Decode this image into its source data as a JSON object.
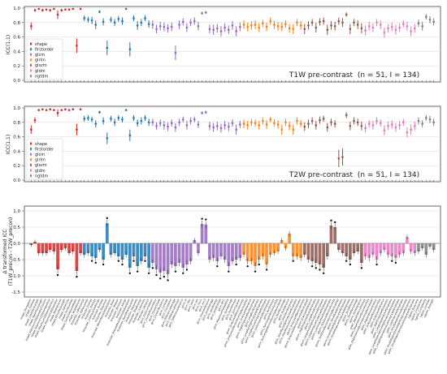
{
  "chart_data": [
    {
      "type": "scatter",
      "panel": "top",
      "title": "T1W pre-contrast",
      "title_stats": "(n = 51, I = 134)",
      "ylabel": "ICC(1,1)",
      "ylim": [
        0,
        1
      ],
      "yticks": [
        "0.0",
        "0.2",
        "0.4",
        "0.6",
        "0.8",
        "1.0"
      ],
      "grid": true,
      "legend": {
        "placement": "lower-left",
        "entries": [
          "shape",
          "firstorder",
          "glcm",
          "glrlm",
          "glszm",
          "gldm",
          "ngtdm"
        ]
      },
      "series_colors": {
        "shape": "#d62728",
        "firstorder": "#1f77b4",
        "glcm": "#9467bd",
        "glrlm": "#ff7f0e",
        "glszm": "#8c564b",
        "gldm": "#e377c2",
        "ngtdm": "#7f7f7f"
      },
      "group_counts": {
        "shape": 14,
        "firstorder": 18,
        "glcm": 24,
        "glrlm": 16,
        "glszm": 16,
        "gldm": 14,
        "ngtdm": 5
      },
      "values": [
        0.75,
        0.97,
        0.99,
        0.97,
        0.98,
        0.97,
        0.99,
        0.91,
        0.97,
        0.98,
        0.98,
        0.99,
        0.48,
        0.99,
        0.86,
        0.84,
        0.83,
        0.77,
        0.95,
        0.81,
        0.45,
        0.84,
        0.8,
        0.85,
        0.82,
        0.99,
        0.43,
        0.86,
        0.76,
        0.8,
        0.86,
        0.78,
        0.77,
        0.71,
        0.75,
        0.74,
        0.72,
        0.74,
        0.38,
        0.77,
        0.81,
        0.73,
        0.8,
        0.82,
        0.75,
        0.93,
        0.94,
        0.71,
        0.7,
        0.72,
        0.68,
        0.73,
        0.7,
        0.76,
        0.68,
        0.74,
        0.77,
        0.74,
        0.76,
        0.77,
        0.73,
        0.79,
        0.74,
        0.82,
        0.77,
        0.75,
        0.74,
        0.78,
        0.72,
        0.71,
        0.8,
        0.76,
        0.71,
        0.76,
        0.8,
        0.73,
        0.81,
        0.82,
        0.7,
        0.76,
        0.75,
        0.82,
        0.8,
        0.91,
        0.71,
        0.8,
        0.77,
        0.72,
        0.69,
        0.75,
        0.73,
        0.8,
        0.77,
        0.66,
        0.72,
        0.74,
        0.7,
        0.73,
        0.78,
        0.75,
        0.68,
        0.72,
        0.79,
        0.75,
        0.88,
        0.84,
        0.81
      ],
      "errors": [
        0.05,
        0.02,
        0.01,
        0.02,
        0.01,
        0.02,
        0.01,
        0.06,
        0.02,
        0.01,
        0.01,
        0.01,
        0.1,
        0.01,
        0.04,
        0.04,
        0.05,
        0.06,
        0.02,
        0.05,
        0.1,
        0.04,
        0.05,
        0.04,
        0.05,
        0.01,
        0.1,
        0.04,
        0.06,
        0.05,
        0.04,
        0.05,
        0.06,
        0.06,
        0.06,
        0.06,
        0.06,
        0.06,
        0.1,
        0.06,
        0.05,
        0.06,
        0.05,
        0.05,
        0.06,
        0.02,
        0.02,
        0.06,
        0.07,
        0.06,
        0.07,
        0.06,
        0.06,
        0.06,
        0.07,
        0.06,
        0.06,
        0.06,
        0.06,
        0.06,
        0.06,
        0.05,
        0.06,
        0.05,
        0.06,
        0.06,
        0.06,
        0.05,
        0.06,
        0.07,
        0.05,
        0.06,
        0.07,
        0.06,
        0.05,
        0.07,
        0.05,
        0.05,
        0.07,
        0.06,
        0.06,
        0.05,
        0.06,
        0.03,
        0.07,
        0.05,
        0.06,
        0.07,
        0.07,
        0.06,
        0.06,
        0.05,
        0.06,
        0.07,
        0.06,
        0.06,
        0.07,
        0.06,
        0.05,
        0.06,
        0.07,
        0.06,
        0.05,
        0.06,
        0.04,
        0.05,
        0.05
      ]
    },
    {
      "type": "scatter",
      "panel": "middle",
      "title": "T2W pre-contrast",
      "title_stats": "(n = 51, I = 134)",
      "ylabel": "ICC(1,1)",
      "ylim": [
        0,
        1
      ],
      "yticks": [
        "0.0",
        "0.2",
        "0.4",
        "0.6",
        "0.8",
        "1.0"
      ],
      "grid": true,
      "legend": {
        "placement": "lower-left",
        "entries": [
          "shape",
          "firstorder",
          "glcm",
          "glrlm",
          "glszm",
          "gldm",
          "ngtdm"
        ]
      },
      "values": [
        0.7,
        0.83,
        0.97,
        0.98,
        0.97,
        0.98,
        0.97,
        0.93,
        0.97,
        0.98,
        0.97,
        0.98,
        0.7,
        0.98,
        0.85,
        0.86,
        0.84,
        0.78,
        0.94,
        0.82,
        0.58,
        0.85,
        0.8,
        0.86,
        0.84,
        0.97,
        0.62,
        0.86,
        0.79,
        0.82,
        0.86,
        0.8,
        0.8,
        0.75,
        0.79,
        0.76,
        0.74,
        0.79,
        0.73,
        0.8,
        0.84,
        0.76,
        0.82,
        0.84,
        0.77,
        0.93,
        0.94,
        0.75,
        0.73,
        0.75,
        0.72,
        0.76,
        0.74,
        0.79,
        0.7,
        0.77,
        0.78,
        0.76,
        0.8,
        0.79,
        0.76,
        0.82,
        0.77,
        0.84,
        0.79,
        0.77,
        0.7,
        0.8,
        0.75,
        0.7,
        0.82,
        0.78,
        0.74,
        0.78,
        0.82,
        0.76,
        0.83,
        0.85,
        0.73,
        0.8,
        0.78,
        0.3,
        0.32,
        0.9,
        0.75,
        0.82,
        0.8,
        0.75,
        0.72,
        0.78,
        0.76,
        0.82,
        0.79,
        0.69,
        0.75,
        0.77,
        0.73,
        0.76,
        0.8,
        0.66,
        0.7,
        0.75,
        0.82,
        0.78,
        0.86,
        0.84,
        0.8
      ],
      "errors": [
        0.06,
        0.04,
        0.01,
        0.01,
        0.01,
        0.01,
        0.01,
        0.05,
        0.01,
        0.01,
        0.01,
        0.01,
        0.08,
        0.01,
        0.04,
        0.04,
        0.04,
        0.05,
        0.02,
        0.05,
        0.08,
        0.04,
        0.05,
        0.04,
        0.04,
        0.01,
        0.08,
        0.04,
        0.05,
        0.05,
        0.04,
        0.05,
        0.05,
        0.05,
        0.05,
        0.06,
        0.06,
        0.05,
        0.06,
        0.05,
        0.04,
        0.06,
        0.05,
        0.04,
        0.05,
        0.02,
        0.02,
        0.06,
        0.06,
        0.06,
        0.06,
        0.06,
        0.06,
        0.05,
        0.07,
        0.05,
        0.06,
        0.06,
        0.05,
        0.05,
        0.06,
        0.05,
        0.06,
        0.04,
        0.05,
        0.06,
        0.07,
        0.05,
        0.06,
        0.07,
        0.05,
        0.05,
        0.06,
        0.06,
        0.05,
        0.06,
        0.05,
        0.04,
        0.06,
        0.05,
        0.05,
        0.12,
        0.12,
        0.04,
        0.06,
        0.05,
        0.05,
        0.06,
        0.06,
        0.05,
        0.06,
        0.05,
        0.05,
        0.07,
        0.06,
        0.06,
        0.06,
        0.06,
        0.05,
        0.07,
        0.07,
        0.06,
        0.05,
        0.05,
        0.04,
        0.05,
        0.05
      ]
    },
    {
      "type": "bar",
      "panel": "bottom",
      "ylabel": "Δ transformed ICC\n(T1W_precon - T2W_precon)",
      "ylim": [
        -1.6,
        1.1
      ],
      "yticks": [
        "1.0",
        "0.5",
        "0.0",
        "-0.5",
        "-1.0",
        "-1.5"
      ],
      "grid": true,
      "categories": [
        "shape_Elongation",
        "shape_Flatness",
        "shape_LeastAxisLength",
        "shape_MajorAxisLength",
        "shape_Maximum2DDiameterColumn",
        "shape_Maximum2DDiameterRow",
        "shape_Maximum2DDiameterSlice",
        "shape_Maximum3DDiameter",
        "shape_MeshVolume",
        "shape_MinorAxisLength",
        "shape_Sphericity",
        "shape_SurfaceArea",
        "shape_SurfaceVolumeRatio",
        "shape_VoxelVolume",
        "firstorder_10Percentile",
        "firstorder_90Percentile",
        "firstorder_Energy",
        "firstorder_Entropy",
        "firstorder_InterquartileRange",
        "firstorder_Kurtosis",
        "firstorder_Maximum",
        "firstorder_MeanAbsoluteDeviation",
        "firstorder_Mean",
        "firstorder_Median",
        "firstorder_Minimum",
        "firstorder_Range",
        "firstorder_RobustMeanAbsoluteDeviation",
        "firstorder_RootMeanSquared",
        "firstorder_Skewness",
        "firstorder_TotalEnergy",
        "firstorder_Uniformity",
        "firstorder_Variance",
        "glcm_Autocorrelation",
        "glcm_ClusterProminence",
        "glcm_ClusterShade",
        "glcm_ClusterTendency",
        "glcm_Contrast",
        "glcm_Correlation",
        "glcm_DifferenceAverage",
        "glcm_DifferenceEntropy",
        "glcm_DifferenceVariance",
        "glcm_Id",
        "glcm_Idm",
        "glcm_Idmn",
        "glcm_Idn",
        "glcm_Imc1",
        "glcm_Imc2",
        "glcm_InverseVariance",
        "glcm_JointAverage",
        "glcm_JointEnergy",
        "glcm_JointEntropy",
        "glcm_MCC",
        "glcm_MaximumProbability",
        "glcm_SumAverage",
        "glcm_SumEntropy",
        "glcm_SumSquares",
        "glrlm_GrayLevelNonUniformity",
        "glrlm_GrayLevelNonUniformityNormalized",
        "glrlm_GrayLevelVariance",
        "glrlm_HighGrayLevelRunEmphasis",
        "glrlm_LongRunEmphasis",
        "glrlm_LongRunHighGrayLevelEmphasis",
        "glrlm_LongRunLowGrayLevelEmphasis",
        "glrlm_LowGrayLevelRunEmphasis",
        "glrlm_RunEntropy",
        "glrlm_RunLengthNonUniformity",
        "glrlm_RunLengthNonUniformityNormalized",
        "glrlm_RunPercentage",
        "glrlm_RunVariance",
        "glrlm_ShortRunEmphasis",
        "glrlm_ShortRunHighGrayLevelEmphasis",
        "glrlm_ShortRunLowGrayLevelEmphasis",
        "glszm_GrayLevelNonUniformity",
        "glszm_GrayLevelNonUniformityNormalized",
        "glszm_GrayLevelVariance",
        "glszm_HighGrayLevelZoneEmphasis",
        "glszm_LargeAreaEmphasis",
        "glszm_LargeAreaHighGrayLevelEmphasis",
        "glszm_LargeAreaLowGrayLevelEmphasis",
        "glszm_LowGrayLevelZoneEmphasis",
        "glszm_SizeZoneNonUniformity",
        "glszm_SizeZoneNonUniformityNormalized",
        "glszm_SmallAreaEmphasis",
        "glszm_SmallAreaHighGrayLevelEmphasis",
        "glszm_SmallAreaLowGrayLevelEmphasis",
        "glszm_ZoneEntropy",
        "glszm_ZonePercentage",
        "glszm_ZoneVariance",
        "gldm_DependenceEntropy",
        "gldm_DependenceNonUniformity",
        "gldm_DependenceNonUniformityNormalized",
        "gldm_DependenceVariance",
        "gldm_GrayLevelNonUniformity",
        "gldm_GrayLevelVariance",
        "gldm_HighGrayLevelEmphasis",
        "gldm_LargeDependenceEmphasis",
        "gldm_LargeDependenceHighGrayLevelEmphasis",
        "gldm_LargeDependenceLowGrayLevelEmphasis",
        "gldm_LowGrayLevelEmphasis",
        "gldm_SmallDependenceEmphasis",
        "gldm_SmallDependenceHighGrayLevelEmphasis",
        "gldm_SmallDependenceLowGrayLevelEmphasis",
        "ngtdm_Busyness",
        "ngtdm_Coarseness",
        "ngtdm_Complexity",
        "ngtdm_Contrast",
        "ngtdm_Strength"
      ],
      "values": [
        -0.05,
        0.05,
        -0.3,
        -0.3,
        -0.3,
        -0.2,
        -0.25,
        -0.8,
        -0.2,
        -0.15,
        -0.3,
        -0.25,
        -0.85,
        -0.3,
        -0.35,
        -0.3,
        -0.4,
        -0.45,
        -0.2,
        -0.5,
        0.62,
        -0.35,
        -0.3,
        -0.4,
        -0.5,
        -0.35,
        -0.75,
        -0.4,
        -0.7,
        -0.55,
        -0.4,
        -0.75,
        -0.6,
        -0.8,
        -0.9,
        -0.85,
        -0.95,
        -0.65,
        -0.7,
        -0.6,
        -0.75,
        -0.65,
        -0.55,
        0.1,
        -0.3,
        0.6,
        0.58,
        -0.5,
        -0.45,
        -0.55,
        -0.4,
        -0.5,
        -0.7,
        -0.55,
        -0.5,
        -0.45,
        -0.35,
        -0.55,
        -0.55,
        -0.7,
        -0.5,
        -0.4,
        -0.65,
        -0.35,
        -0.3,
        -0.25,
        0.1,
        -0.15,
        0.3,
        -0.4,
        -0.4,
        -0.45,
        -0.35,
        -0.5,
        -0.55,
        -0.6,
        -0.65,
        -0.75,
        -0.4,
        0.55,
        0.5,
        -0.2,
        -0.3,
        -0.4,
        -0.5,
        -0.3,
        -0.25,
        -0.6,
        -0.4,
        -0.45,
        -0.35,
        -0.5,
        -0.3,
        -0.2,
        -0.35,
        -0.4,
        -0.45,
        -0.35,
        -0.3,
        0.2,
        -0.25,
        -0.3,
        -0.25,
        -0.15,
        -0.35,
        -0.1,
        -0.2
      ],
      "significant_markers": [
        0,
        0,
        0,
        0,
        0,
        0,
        0,
        1,
        0,
        0,
        0,
        0,
        1,
        0,
        0,
        0,
        1,
        1,
        0,
        1,
        1,
        0,
        0,
        1,
        1,
        0,
        1,
        1,
        1,
        0,
        1,
        1,
        1,
        1,
        1,
        1,
        1,
        0,
        1,
        0,
        1,
        1,
        0,
        0,
        0,
        1,
        1,
        0,
        0,
        1,
        0,
        0,
        1,
        0,
        1,
        0,
        0,
        1,
        0,
        1,
        1,
        0,
        1,
        0,
        0,
        0,
        0,
        0,
        0,
        1,
        0,
        0,
        0,
        0,
        1,
        1,
        1,
        1,
        0,
        1,
        1,
        0,
        0,
        1,
        1,
        0,
        0,
        1,
        0,
        0,
        0,
        1,
        0,
        0,
        0,
        1,
        1,
        0,
        0,
        0,
        0,
        0,
        0,
        0,
        0,
        0,
        0
      ]
    }
  ]
}
